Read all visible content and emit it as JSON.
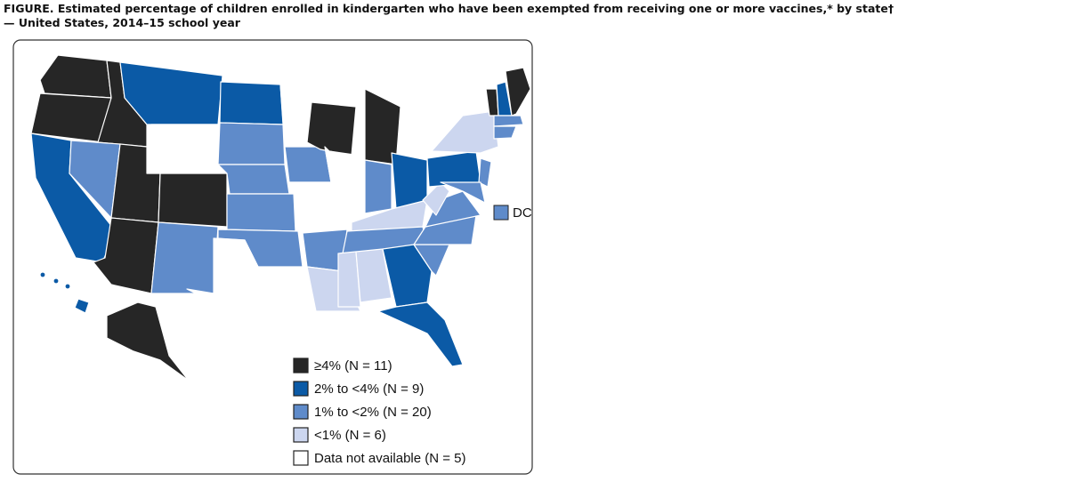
{
  "header": {
    "title_line1": "FIGURE. Estimated percentage of children enrolled in kindergarten who have been exempted from receiving one or more vaccines,* by state†",
    "title_line2": "— United States, 2014–15 school year"
  },
  "map": {
    "dc_label": "DC",
    "legend": [
      {
        "label": "≥4% (N = 11)",
        "color": "#262626"
      },
      {
        "label": "2% to <4% (N = 9)",
        "color": "#0b5aa6"
      },
      {
        "label": "1% to <2% (N = 20)",
        "color": "#5f8bca"
      },
      {
        "label": "<1% (N = 6)",
        "color": "#ccd6ef"
      },
      {
        "label": "Data not available (N = 5)",
        "color": "#ffffff"
      }
    ]
  }
}
